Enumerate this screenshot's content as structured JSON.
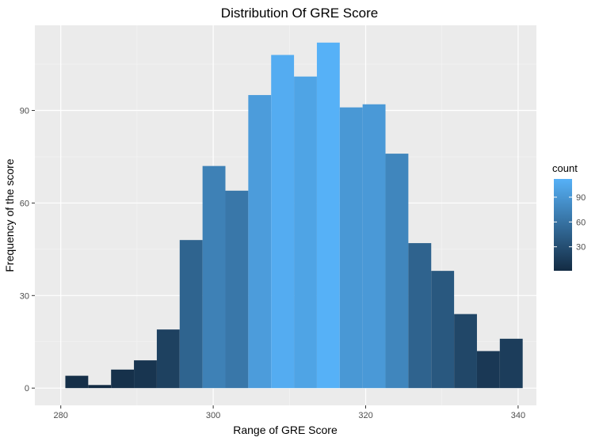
{
  "chart_data": {
    "type": "bar",
    "title": "Distribution Of GRE Score",
    "xlabel": "Range of GRE Score",
    "ylabel": "Frequency of the score",
    "xlim": [
      276.6,
      342.4
    ],
    "ylim": [
      -5.6,
      117.6
    ],
    "bin_width": 3.0,
    "bins": [
      {
        "x": 282.1,
        "count": 4
      },
      {
        "x": 285.1,
        "count": 1
      },
      {
        "x": 288.1,
        "count": 6
      },
      {
        "x": 291.1,
        "count": 9
      },
      {
        "x": 294.1,
        "count": 19
      },
      {
        "x": 297.1,
        "count": 48
      },
      {
        "x": 300.1,
        "count": 72
      },
      {
        "x": 303.1,
        "count": 64
      },
      {
        "x": 306.1,
        "count": 95
      },
      {
        "x": 309.1,
        "count": 108
      },
      {
        "x": 312.1,
        "count": 101
      },
      {
        "x": 315.1,
        "count": 112
      },
      {
        "x": 318.1,
        "count": 91
      },
      {
        "x": 321.1,
        "count": 92
      },
      {
        "x": 324.1,
        "count": 76
      },
      {
        "x": 327.1,
        "count": 47
      },
      {
        "x": 330.1,
        "count": 38
      },
      {
        "x": 333.1,
        "count": 24
      },
      {
        "x": 336.1,
        "count": 12
      },
      {
        "x": 339.1,
        "count": 16
      }
    ],
    "x_ticks": [
      280,
      300,
      320,
      340
    ],
    "y_ticks": [
      0,
      30,
      60,
      90
    ],
    "grid": true,
    "legend": {
      "title": "count",
      "position": "right",
      "ticks": [
        30,
        60,
        90
      ],
      "range": [
        1,
        112
      ],
      "color_low": "#132B43",
      "color_high": "#56B1F7"
    }
  }
}
